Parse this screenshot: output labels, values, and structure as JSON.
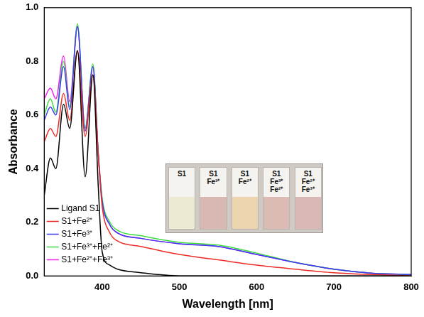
{
  "chart_data": {
    "type": "line",
    "x_label": "Wavelength [nm]",
    "y_label": "Absorbance",
    "x": [
      325,
      333,
      340,
      350,
      358,
      368,
      378,
      388,
      395,
      400,
      410,
      420,
      450,
      500,
      550,
      600,
      650,
      700,
      750,
      800
    ],
    "series": [
      {
        "name": "Ligand S1",
        "color": "#000000",
        "values": [
          0.3,
          0.44,
          0.4,
          0.64,
          0.55,
          0.84,
          0.37,
          0.75,
          0.33,
          0.09,
          0.04,
          0.025,
          0.012,
          0,
          0,
          0,
          0,
          0,
          0,
          0
        ]
      },
      {
        "name": "S1+Fe²⁺",
        "color": "#ee2a24",
        "values": [
          0.5,
          0.55,
          0.52,
          0.68,
          0.58,
          0.84,
          0.52,
          0.75,
          0.45,
          0.26,
          0.16,
          0.13,
          0.11,
          0.08,
          0.06,
          0.04,
          0.025,
          0.012,
          0.005,
          0
        ]
      },
      {
        "name": "S1+Fe³⁺",
        "color": "#3a3af2",
        "values": [
          0.58,
          0.63,
          0.6,
          0.78,
          0.62,
          0.93,
          0.54,
          0.78,
          0.45,
          0.28,
          0.19,
          0.16,
          0.14,
          0.12,
          0.11,
          0.08,
          0.05,
          0.025,
          0.01,
          0.005
        ]
      },
      {
        "name": "S1+Fe³⁺+Fe²⁺",
        "color": "#3fdc3f",
        "values": [
          0.6,
          0.66,
          0.61,
          0.8,
          0.63,
          0.94,
          0.55,
          0.79,
          0.46,
          0.29,
          0.2,
          0.17,
          0.15,
          0.125,
          0.115,
          0.085,
          0.05,
          0.025,
          0.01,
          0.005
        ]
      },
      {
        "name": "S1+Fe²⁺+Fe³⁺",
        "color": "#f020f0",
        "values": [
          0.66,
          0.7,
          0.66,
          0.82,
          0.65,
          0.93,
          0.55,
          0.78,
          0.45,
          0.28,
          0.19,
          0.16,
          0.14,
          0.12,
          0.11,
          0.08,
          0.05,
          0.025,
          0.01,
          0.005
        ]
      }
    ],
    "xlim": [
      325,
      800
    ],
    "xticks": [
      400,
      500,
      600,
      700,
      800
    ],
    "ylim": [
      0,
      1
    ],
    "yticks": [
      {
        "value": 0,
        "label": "0.0"
      },
      0.2,
      0.4,
      0.6,
      0.8,
      {
        "value": 1,
        "label": "1.0"
      }
    ],
    "grid": false,
    "legend": "upper right",
    "annotations": [
      {
        "text": [
          "S1"
        ],
        "color": "#ecebd2"
      },
      {
        "text": [
          "S1",
          "Fe³⁺"
        ],
        "color": "#d8b8b2"
      },
      {
        "text": [
          "S1",
          "Fe²⁺"
        ],
        "color": "#ecd5ae"
      },
      {
        "text": [
          "S1",
          "Fe³⁺",
          "Fe²⁺"
        ],
        "color": "#dbbbb4"
      },
      {
        "text": [
          "S1",
          "Fe²⁺",
          "Fe³⁺"
        ],
        "color": "#d8b9b6"
      }
    ]
  }
}
